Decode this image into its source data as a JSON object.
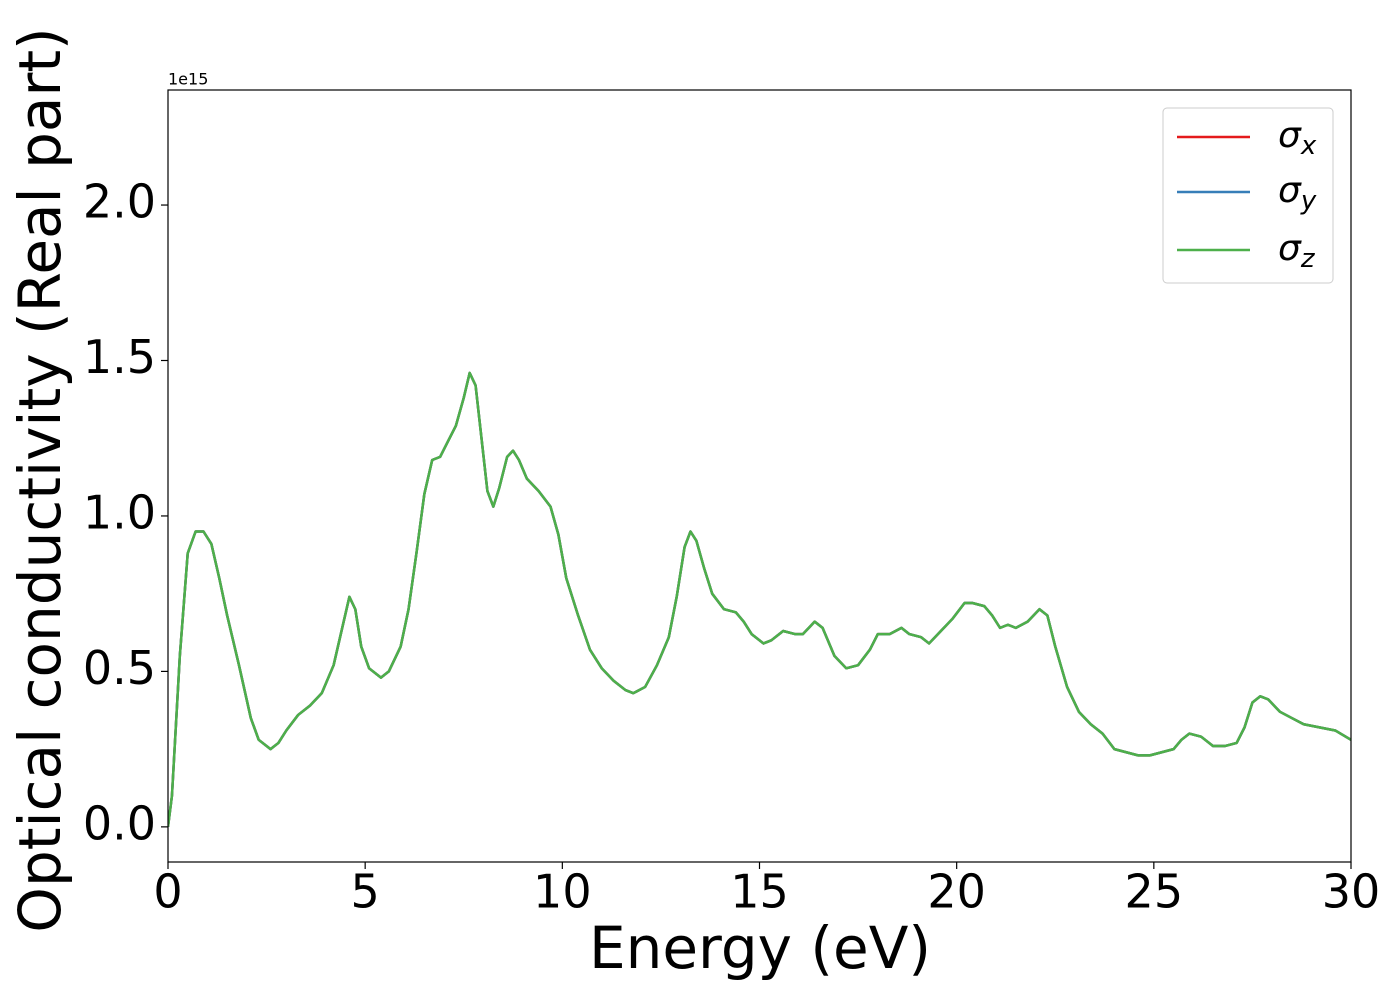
{
  "chart_data": {
    "type": "line",
    "x_label": "Energy (eV)",
    "y_label": "Optical conductivity (Real part)",
    "y_offset_text": "1e15",
    "x": [
      0,
      0.1,
      0.3,
      0.5,
      0.7,
      0.9,
      1.1,
      1.3,
      1.5,
      1.8,
      2.1,
      2.3,
      2.6,
      2.8,
      3.0,
      3.3,
      3.6,
      3.9,
      4.2,
      4.4,
      4.6,
      4.75,
      4.9,
      5.1,
      5.4,
      5.6,
      5.9,
      6.1,
      6.3,
      6.5,
      6.7,
      6.9,
      7.1,
      7.3,
      7.5,
      7.65,
      7.8,
      7.95,
      8.1,
      8.25,
      8.4,
      8.6,
      8.75,
      8.9,
      9.1,
      9.4,
      9.7,
      9.9,
      10.1,
      10.4,
      10.7,
      11.0,
      11.3,
      11.6,
      11.8,
      12.1,
      12.4,
      12.7,
      12.9,
      13.1,
      13.25,
      13.4,
      13.6,
      13.8,
      14.1,
      14.4,
      14.6,
      14.8,
      15.1,
      15.3,
      15.6,
      15.9,
      16.1,
      16.4,
      16.6,
      16.9,
      17.2,
      17.5,
      17.8,
      18.0,
      18.3,
      18.6,
      18.8,
      19.1,
      19.3,
      19.6,
      19.9,
      20.2,
      20.4,
      20.7,
      20.9,
      21.1,
      21.3,
      21.5,
      21.8,
      22.1,
      22.3,
      22.5,
      22.8,
      23.1,
      23.4,
      23.7,
      24.0,
      24.3,
      24.6,
      24.9,
      25.2,
      25.5,
      25.7,
      25.9,
      26.2,
      26.5,
      26.8,
      27.1,
      27.3,
      27.5,
      27.7,
      27.9,
      28.2,
      28.5,
      28.8,
      29.2,
      29.6,
      30.0
    ],
    "series": [
      {
        "name": "σx",
        "color": "#e41a1c",
        "values": [
          0.0,
          0.1,
          0.55,
          0.88,
          0.95,
          0.95,
          0.91,
          0.8,
          0.68,
          0.52,
          0.35,
          0.28,
          0.25,
          0.27,
          0.31,
          0.36,
          0.39,
          0.43,
          0.52,
          0.63,
          0.74,
          0.7,
          0.58,
          0.51,
          0.48,
          0.5,
          0.58,
          0.7,
          0.88,
          1.07,
          1.18,
          1.19,
          1.24,
          1.29,
          1.38,
          1.46,
          1.42,
          1.25,
          1.08,
          1.03,
          1.09,
          1.19,
          1.21,
          1.18,
          1.12,
          1.08,
          1.03,
          0.94,
          0.8,
          0.68,
          0.57,
          0.51,
          0.47,
          0.44,
          0.43,
          0.45,
          0.52,
          0.61,
          0.74,
          0.9,
          0.95,
          0.92,
          0.83,
          0.75,
          0.7,
          0.69,
          0.66,
          0.62,
          0.59,
          0.6,
          0.63,
          0.62,
          0.62,
          0.66,
          0.64,
          0.55,
          0.51,
          0.52,
          0.57,
          0.62,
          0.62,
          0.64,
          0.62,
          0.61,
          0.59,
          0.63,
          0.67,
          0.72,
          0.72,
          0.71,
          0.68,
          0.64,
          0.65,
          0.64,
          0.66,
          0.7,
          0.68,
          0.58,
          0.45,
          0.37,
          0.33,
          0.3,
          0.25,
          0.24,
          0.23,
          0.23,
          0.24,
          0.25,
          0.28,
          0.3,
          0.29,
          0.26,
          0.26,
          0.27,
          0.32,
          0.4,
          0.42,
          0.41,
          0.37,
          0.35,
          0.33,
          0.32,
          0.31,
          0.28
        ]
      },
      {
        "name": "σy",
        "color": "#377eb8",
        "values": [
          0.0,
          0.1,
          0.55,
          0.88,
          0.95,
          0.95,
          0.91,
          0.8,
          0.68,
          0.52,
          0.35,
          0.28,
          0.25,
          0.27,
          0.31,
          0.36,
          0.39,
          0.43,
          0.52,
          0.63,
          0.74,
          0.7,
          0.58,
          0.51,
          0.48,
          0.5,
          0.58,
          0.7,
          0.88,
          1.07,
          1.18,
          1.19,
          1.24,
          1.29,
          1.38,
          1.46,
          1.42,
          1.25,
          1.08,
          1.03,
          1.09,
          1.19,
          1.21,
          1.18,
          1.12,
          1.08,
          1.03,
          0.94,
          0.8,
          0.68,
          0.57,
          0.51,
          0.47,
          0.44,
          0.43,
          0.45,
          0.52,
          0.61,
          0.74,
          0.9,
          0.95,
          0.92,
          0.83,
          0.75,
          0.7,
          0.69,
          0.66,
          0.62,
          0.59,
          0.6,
          0.63,
          0.62,
          0.62,
          0.66,
          0.64,
          0.55,
          0.51,
          0.52,
          0.57,
          0.62,
          0.62,
          0.64,
          0.62,
          0.61,
          0.59,
          0.63,
          0.67,
          0.72,
          0.72,
          0.71,
          0.68,
          0.64,
          0.65,
          0.64,
          0.66,
          0.7,
          0.68,
          0.58,
          0.45,
          0.37,
          0.33,
          0.3,
          0.25,
          0.24,
          0.23,
          0.23,
          0.24,
          0.25,
          0.28,
          0.3,
          0.29,
          0.26,
          0.26,
          0.27,
          0.32,
          0.4,
          0.42,
          0.41,
          0.37,
          0.35,
          0.33,
          0.32,
          0.31,
          0.28
        ]
      },
      {
        "name": "σz",
        "color": "#4daf4a",
        "values": [
          0.0,
          0.1,
          0.55,
          0.88,
          0.95,
          0.95,
          0.91,
          0.8,
          0.68,
          0.52,
          0.35,
          0.28,
          0.25,
          0.27,
          0.31,
          0.36,
          0.39,
          0.43,
          0.52,
          0.63,
          0.74,
          0.7,
          0.58,
          0.51,
          0.48,
          0.5,
          0.58,
          0.7,
          0.88,
          1.07,
          1.18,
          1.19,
          1.24,
          1.29,
          1.38,
          1.46,
          1.42,
          1.25,
          1.08,
          1.03,
          1.09,
          1.19,
          1.21,
          1.18,
          1.12,
          1.08,
          1.03,
          0.94,
          0.8,
          0.68,
          0.57,
          0.51,
          0.47,
          0.44,
          0.43,
          0.45,
          0.52,
          0.61,
          0.74,
          0.9,
          0.95,
          0.92,
          0.83,
          0.75,
          0.7,
          0.69,
          0.66,
          0.62,
          0.59,
          0.6,
          0.63,
          0.62,
          0.62,
          0.66,
          0.64,
          0.55,
          0.51,
          0.52,
          0.57,
          0.62,
          0.62,
          0.64,
          0.62,
          0.61,
          0.59,
          0.63,
          0.67,
          0.72,
          0.72,
          0.71,
          0.68,
          0.64,
          0.65,
          0.64,
          0.66,
          0.7,
          0.68,
          0.58,
          0.45,
          0.37,
          0.33,
          0.3,
          0.25,
          0.24,
          0.23,
          0.23,
          0.24,
          0.25,
          0.28,
          0.3,
          0.29,
          0.26,
          0.26,
          0.27,
          0.32,
          0.4,
          0.42,
          0.41,
          0.37,
          0.35,
          0.33,
          0.32,
          0.31,
          0.28
        ]
      }
    ],
    "xlim": [
      0,
      30
    ],
    "xticks": [
      0,
      5,
      10,
      15,
      20,
      25,
      30
    ],
    "ylim": [
      -0.113,
      2.37
    ],
    "yticks": [
      {
        "value": 0,
        "label": "0.0"
      },
      0.5,
      {
        "value": 1,
        "label": "1.0"
      },
      1.5,
      {
        "value": 2,
        "label": "2.0"
      }
    ],
    "grid": false,
    "legend": "upper right"
  }
}
